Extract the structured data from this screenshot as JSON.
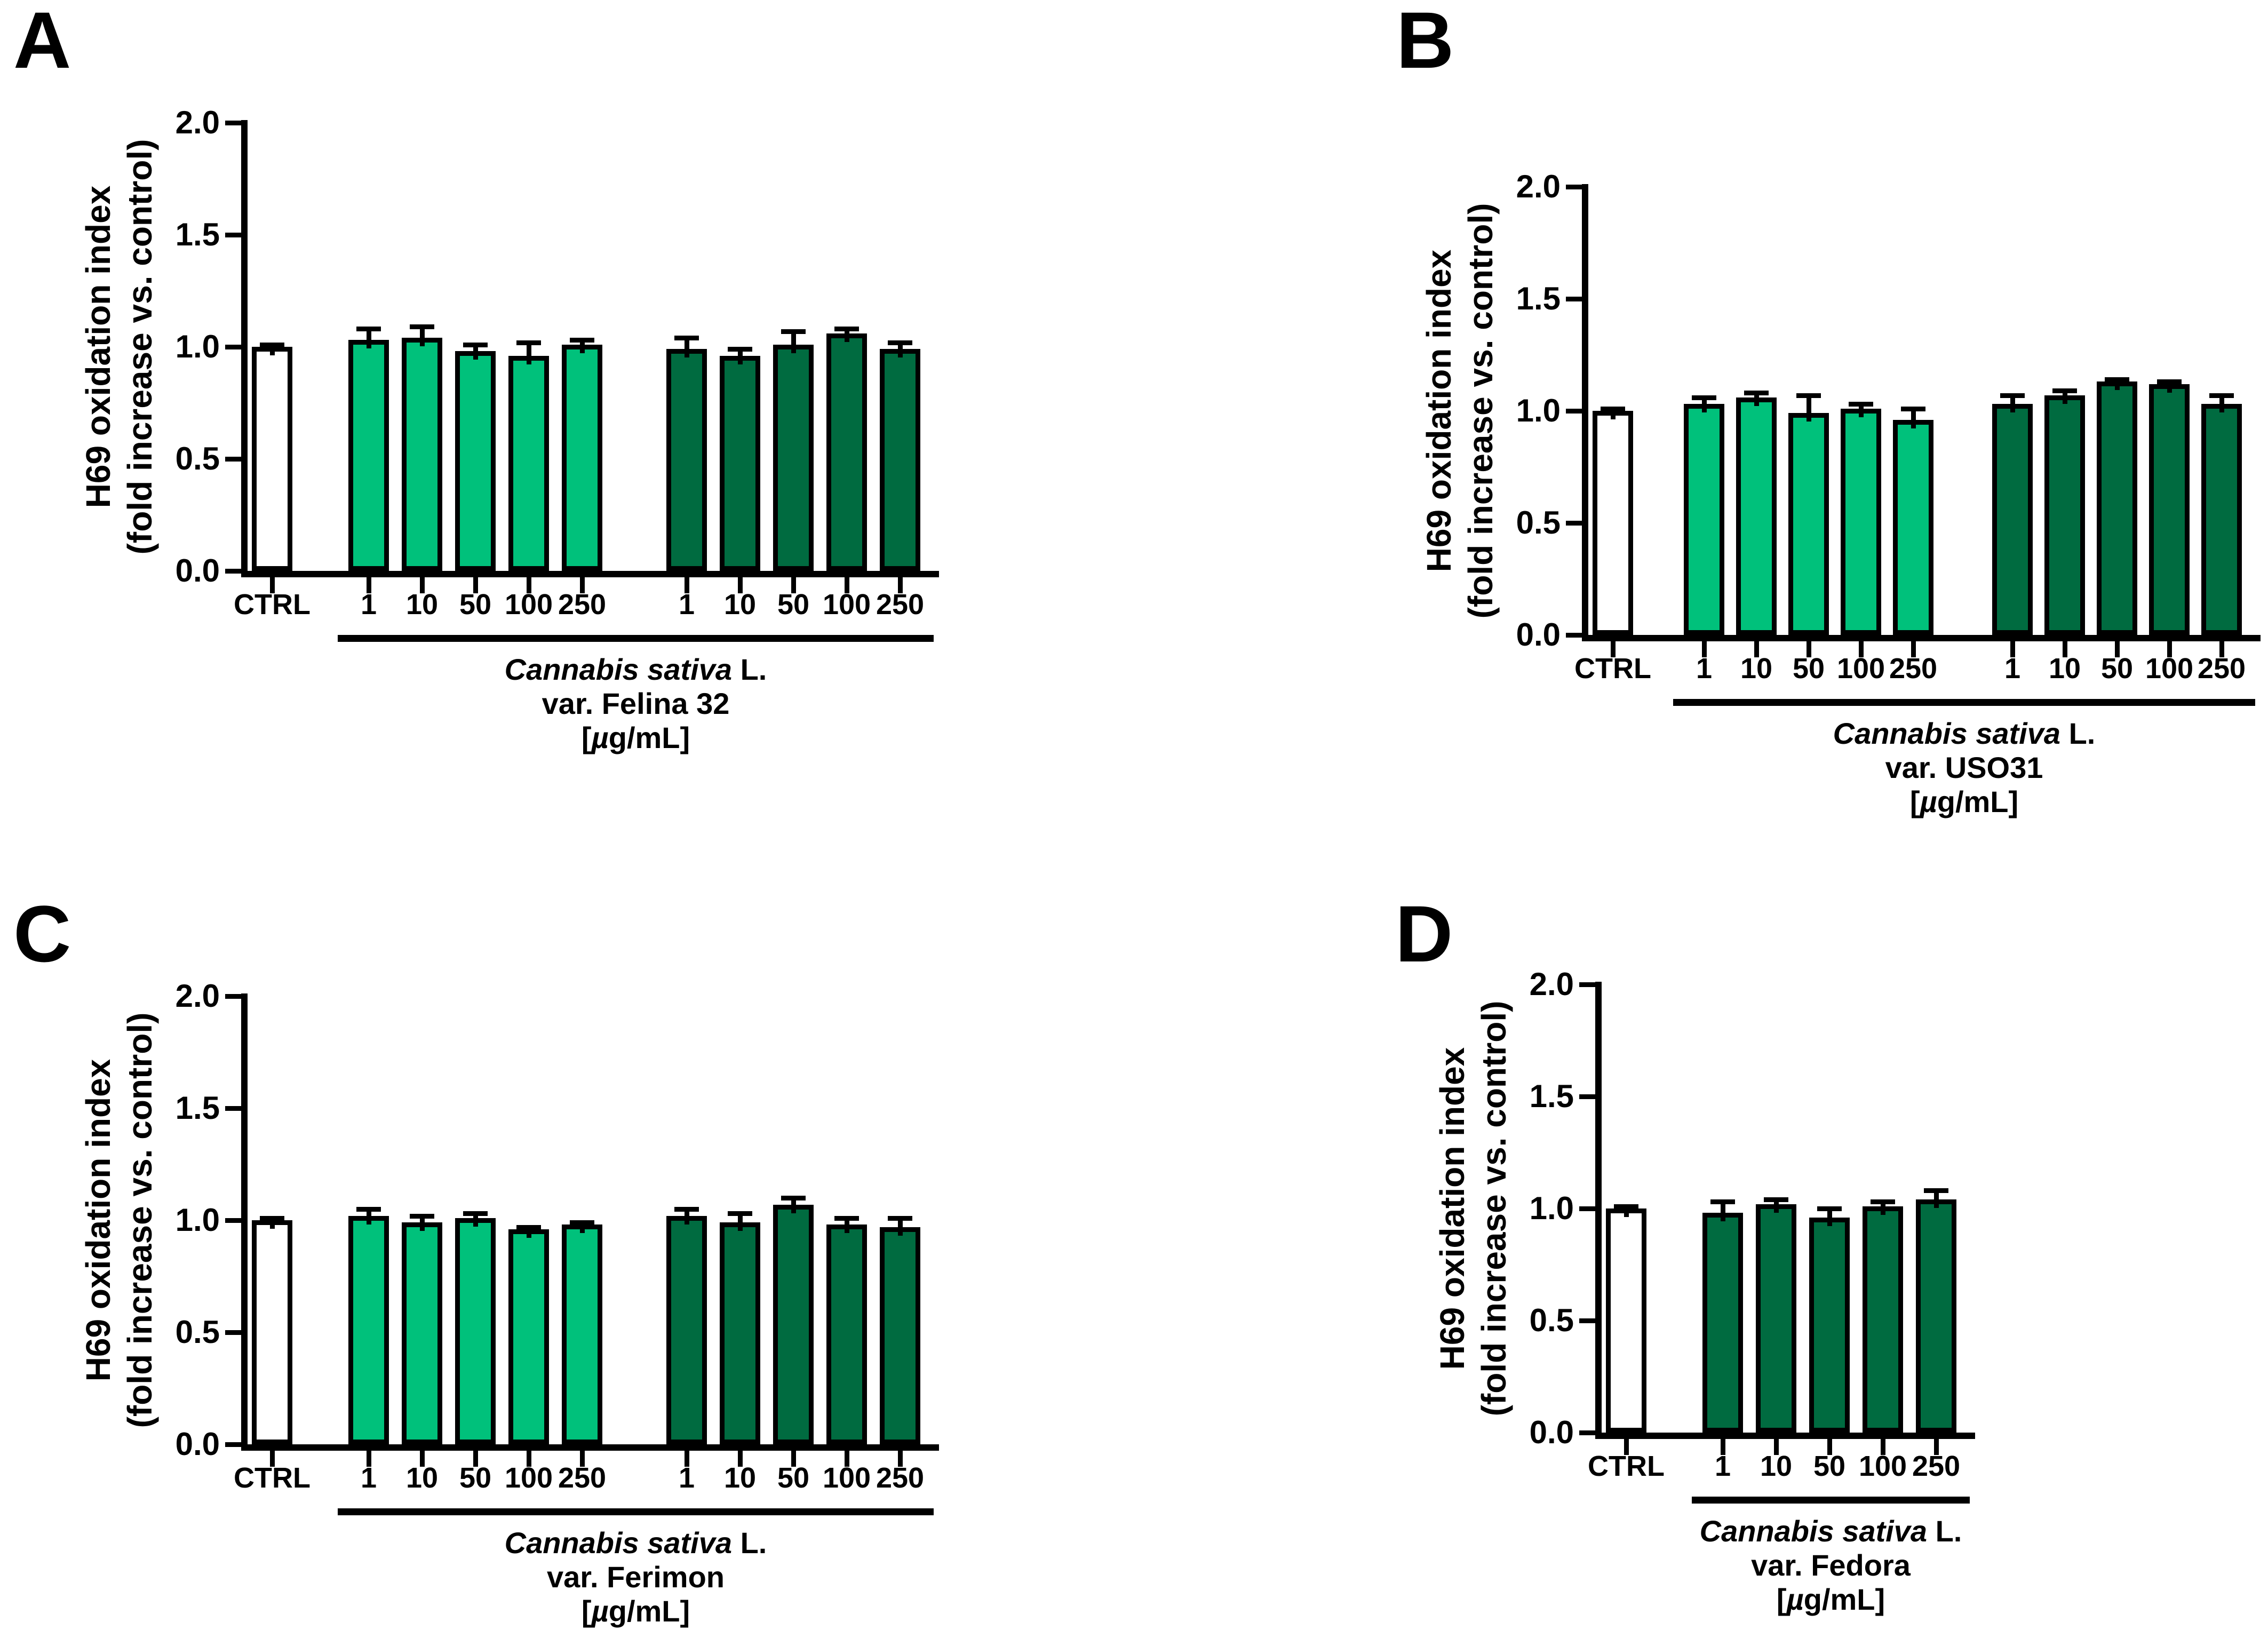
{
  "colors": {
    "light_green": "#00C17B",
    "dark_green": "#006B40",
    "control_fill": "#FFFFFF",
    "outline": "#000000",
    "background": "#FFFFFF"
  },
  "y_axis": {
    "title_line1": "H69 oxidation index",
    "title_line2": "(fold increase vs. control)",
    "tick_labels": [
      "0.0",
      "0.5",
      "1.0",
      "1.5",
      "2.0"
    ],
    "min": 0,
    "max": 2
  },
  "x_axis": {
    "control_label": "CTRL",
    "dose_labels": [
      "1",
      "10",
      "50",
      "100",
      "250"
    ]
  },
  "chart_data": [
    {
      "type": "bar",
      "panel_letter": "A",
      "ylabel_line1": "H69 oxidation index",
      "ylabel_line2": "(fold increase vs. control)",
      "ylim": [
        0,
        2
      ],
      "yticks": [
        "0.0",
        "0.5",
        "1.0",
        "1.5",
        "2.0"
      ],
      "categories": [
        "CTRL",
        "1",
        "10",
        "50",
        "100",
        "250",
        "1",
        "10",
        "50",
        "100",
        "250"
      ],
      "values": [
        1.0,
        1.03,
        1.04,
        0.98,
        0.96,
        1.01,
        0.99,
        0.96,
        1.01,
        1.06,
        0.99
      ],
      "errors": [
        0.01,
        0.05,
        0.05,
        0.03,
        0.06,
        0.02,
        0.05,
        0.03,
        0.06,
        0.02,
        0.03
      ],
      "bar_groups": [
        "control",
        "light",
        "light",
        "light",
        "light",
        "light",
        "dark",
        "dark",
        "dark",
        "dark",
        "dark"
      ],
      "group_label_italic": "Cannabis sativa",
      "group_label_rest": " L.",
      "group_label_line2": "var. Felina 32",
      "group_label_line3": "[µg/mL]"
    },
    {
      "type": "bar",
      "panel_letter": "B",
      "ylabel_line1": "H69 oxidation index",
      "ylabel_line2": "(fold increase vs. control)",
      "ylim": [
        0,
        2
      ],
      "yticks": [
        "0.0",
        "0.5",
        "1.0",
        "1.5",
        "2.0"
      ],
      "categories": [
        "CTRL",
        "1",
        "10",
        "50",
        "100",
        "250",
        "1",
        "10",
        "50",
        "100",
        "250"
      ],
      "values": [
        1.0,
        1.03,
        1.06,
        0.99,
        1.01,
        0.96,
        1.03,
        1.07,
        1.13,
        1.12,
        1.03
      ],
      "errors": [
        0.01,
        0.03,
        0.02,
        0.08,
        0.02,
        0.05,
        0.04,
        0.02,
        0.01,
        0.01,
        0.04
      ],
      "bar_groups": [
        "control",
        "light",
        "light",
        "light",
        "light",
        "light",
        "dark",
        "dark",
        "dark",
        "dark",
        "dark"
      ],
      "group_label_italic": "Cannabis sativa",
      "group_label_rest": " L.",
      "group_label_line2": "var. USO31",
      "group_label_line3": "[µg/mL]"
    },
    {
      "type": "bar",
      "panel_letter": "C",
      "ylabel_line1": "H69 oxidation index",
      "ylabel_line2": "(fold increase vs. control)",
      "ylim": [
        0,
        2
      ],
      "yticks": [
        "0.0",
        "0.5",
        "1.0",
        "1.5",
        "2.0"
      ],
      "categories": [
        "CTRL",
        "1",
        "10",
        "50",
        "100",
        "250",
        "1",
        "10",
        "50",
        "100",
        "250"
      ],
      "values": [
        1.0,
        1.02,
        0.99,
        1.01,
        0.96,
        0.98,
        1.02,
        0.99,
        1.07,
        0.98,
        0.97
      ],
      "errors": [
        0.01,
        0.03,
        0.03,
        0.02,
        0.01,
        0.01,
        0.03,
        0.04,
        0.03,
        0.03,
        0.04
      ],
      "bar_groups": [
        "control",
        "light",
        "light",
        "light",
        "light",
        "light",
        "dark",
        "dark",
        "dark",
        "dark",
        "dark"
      ],
      "group_label_italic": "Cannabis sativa",
      "group_label_rest": " L.",
      "group_label_line2": "var. Ferimon",
      "group_label_line3": "[µg/mL]"
    },
    {
      "type": "bar",
      "panel_letter": "D",
      "ylabel_line1": "H69 oxidation index",
      "ylabel_line2": "(fold increase vs. control)",
      "ylim": [
        0,
        2
      ],
      "yticks": [
        "0.0",
        "0.5",
        "1.0",
        "1.5",
        "2.0"
      ],
      "categories": [
        "CTRL",
        "1",
        "10",
        "50",
        "100",
        "250"
      ],
      "values": [
        1.0,
        0.98,
        1.02,
        0.96,
        1.01,
        1.04
      ],
      "errors": [
        0.01,
        0.05,
        0.02,
        0.04,
        0.02,
        0.04
      ],
      "bar_groups": [
        "control",
        "dark",
        "dark",
        "dark",
        "dark",
        "dark"
      ],
      "group_label_italic": "Cannabis sativa",
      "group_label_rest": " L.",
      "group_label_line2": "var. Fedora",
      "group_label_line3": "[µg/mL]"
    }
  ]
}
